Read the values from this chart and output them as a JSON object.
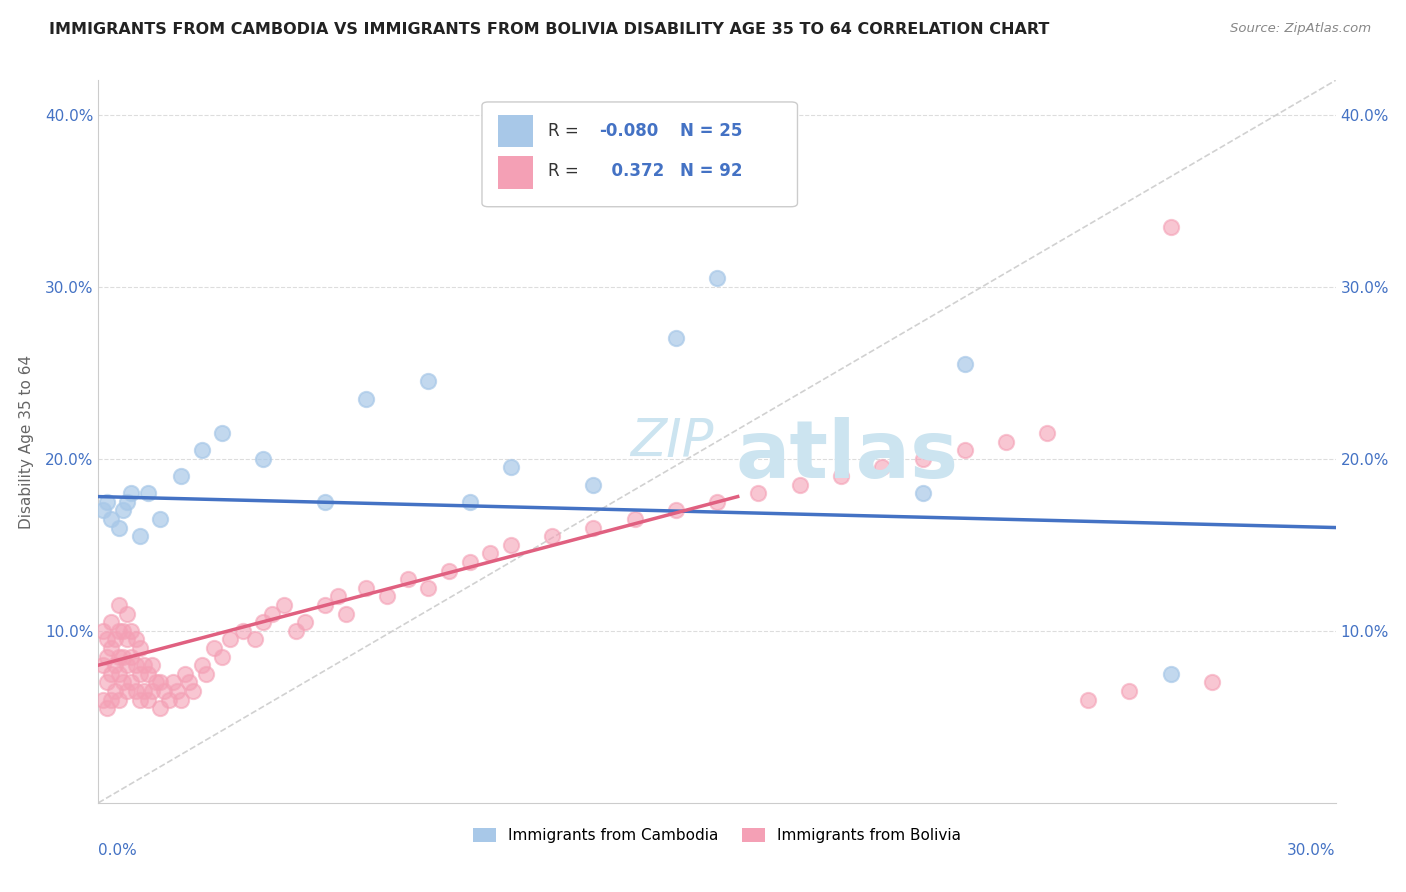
{
  "title": "IMMIGRANTS FROM CAMBODIA VS IMMIGRANTS FROM BOLIVIA DISABILITY AGE 35 TO 64 CORRELATION CHART",
  "source": "Source: ZipAtlas.com",
  "ylabel": "Disability Age 35 to 64",
  "legend_label1": "Immigrants from Cambodia",
  "legend_label2": "Immigrants from Bolivia",
  "R1": -0.08,
  "N1": 25,
  "R2": 0.372,
  "N2": 92,
  "color1": "#a8c8e8",
  "color2": "#f4a0b5",
  "line_color1": "#4472c4",
  "line_color2": "#e06080",
  "diag_color": "#cccccc",
  "background_color": "#ffffff",
  "grid_color": "#dddddd",
  "text_color": "#4472c4",
  "title_color": "#222222",
  "ylabel_color": "#666666",
  "watermark_color": "#cce4f0",
  "xlim": [
    0.0,
    0.3
  ],
  "ylim": [
    0.0,
    0.42
  ],
  "ytick_vals": [
    0.1,
    0.2,
    0.3,
    0.4
  ],
  "ytick_labels": [
    "10.0%",
    "20.0%",
    "30.0%",
    "40.0%"
  ],
  "scatter1_x": [
    0.001,
    0.002,
    0.003,
    0.005,
    0.006,
    0.007,
    0.008,
    0.01,
    0.012,
    0.015,
    0.02,
    0.025,
    0.03,
    0.04,
    0.055,
    0.065,
    0.08,
    0.09,
    0.1,
    0.12,
    0.14,
    0.15,
    0.2,
    0.21,
    0.26
  ],
  "scatter1_y": [
    0.17,
    0.175,
    0.165,
    0.16,
    0.17,
    0.175,
    0.18,
    0.155,
    0.18,
    0.165,
    0.19,
    0.205,
    0.215,
    0.2,
    0.175,
    0.235,
    0.245,
    0.175,
    0.195,
    0.185,
    0.27,
    0.305,
    0.18,
    0.255,
    0.075
  ],
  "scatter2_x": [
    0.001,
    0.001,
    0.001,
    0.002,
    0.002,
    0.002,
    0.002,
    0.003,
    0.003,
    0.003,
    0.003,
    0.004,
    0.004,
    0.004,
    0.005,
    0.005,
    0.005,
    0.005,
    0.005,
    0.006,
    0.006,
    0.006,
    0.007,
    0.007,
    0.007,
    0.007,
    0.008,
    0.008,
    0.008,
    0.009,
    0.009,
    0.009,
    0.01,
    0.01,
    0.01,
    0.011,
    0.011,
    0.012,
    0.012,
    0.013,
    0.013,
    0.014,
    0.015,
    0.015,
    0.016,
    0.017,
    0.018,
    0.019,
    0.02,
    0.021,
    0.022,
    0.023,
    0.025,
    0.026,
    0.028,
    0.03,
    0.032,
    0.035,
    0.038,
    0.04,
    0.042,
    0.045,
    0.048,
    0.05,
    0.055,
    0.058,
    0.06,
    0.065,
    0.07,
    0.075,
    0.08,
    0.085,
    0.09,
    0.095,
    0.1,
    0.11,
    0.12,
    0.13,
    0.14,
    0.15,
    0.16,
    0.17,
    0.18,
    0.19,
    0.2,
    0.21,
    0.22,
    0.23,
    0.24,
    0.25,
    0.26,
    0.27
  ],
  "scatter2_y": [
    0.06,
    0.08,
    0.1,
    0.055,
    0.07,
    0.085,
    0.095,
    0.06,
    0.075,
    0.09,
    0.105,
    0.065,
    0.08,
    0.095,
    0.06,
    0.075,
    0.085,
    0.1,
    0.115,
    0.07,
    0.085,
    0.1,
    0.065,
    0.08,
    0.095,
    0.11,
    0.07,
    0.085,
    0.1,
    0.065,
    0.08,
    0.095,
    0.06,
    0.075,
    0.09,
    0.065,
    0.08,
    0.06,
    0.075,
    0.065,
    0.08,
    0.07,
    0.055,
    0.07,
    0.065,
    0.06,
    0.07,
    0.065,
    0.06,
    0.075,
    0.07,
    0.065,
    0.08,
    0.075,
    0.09,
    0.085,
    0.095,
    0.1,
    0.095,
    0.105,
    0.11,
    0.115,
    0.1,
    0.105,
    0.115,
    0.12,
    0.11,
    0.125,
    0.12,
    0.13,
    0.125,
    0.135,
    0.14,
    0.145,
    0.15,
    0.155,
    0.16,
    0.165,
    0.17,
    0.175,
    0.18,
    0.185,
    0.19,
    0.195,
    0.2,
    0.205,
    0.21,
    0.215,
    0.06,
    0.065,
    0.335,
    0.07
  ],
  "blue_line_x": [
    0.0,
    0.3
  ],
  "blue_line_y": [
    0.178,
    0.16
  ],
  "pink_line_x": [
    0.0,
    0.155
  ],
  "pink_line_y": [
    0.08,
    0.178
  ]
}
